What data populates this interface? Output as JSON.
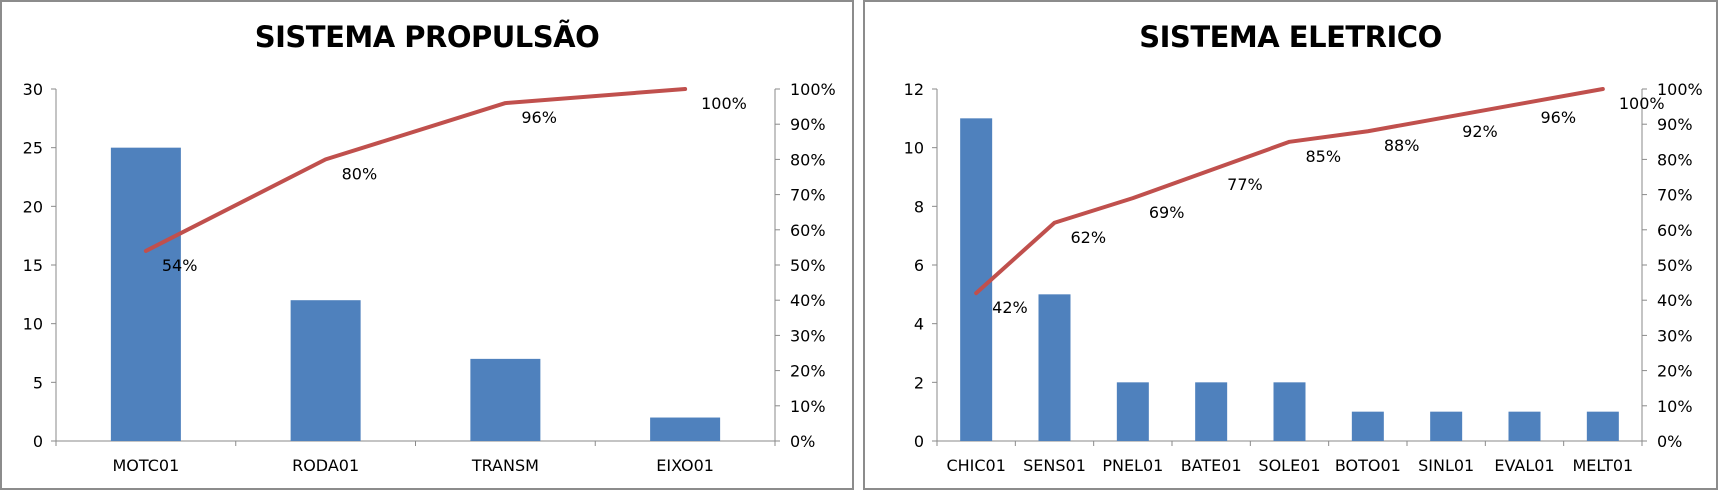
{
  "chart_data": [
    {
      "type": "bar",
      "title": "SISTEMA PROPULSÃO",
      "categories": [
        "MOTC01",
        "RODA01",
        "TRANSM",
        "EIXO01"
      ],
      "values": [
        25,
        12,
        7,
        2
      ],
      "ylim": [
        0,
        30
      ],
      "y_ticks": [
        "0",
        "5",
        "10",
        "15",
        "20",
        "25",
        "30"
      ],
      "cumulative": [
        54,
        80,
        96,
        100
      ],
      "cumulative_labels": [
        "54%",
        "80%",
        "96%",
        "100%"
      ],
      "y2_ticks": [
        "0%",
        "10%",
        "20%",
        "30%",
        "40%",
        "50%",
        "60%",
        "70%",
        "80%",
        "90%",
        "100%"
      ],
      "bar_color": "#4f81bd",
      "line_color": "#c0504d",
      "grid": false,
      "legend": "none"
    },
    {
      "type": "bar",
      "title": "SISTEMA ELETRICO",
      "categories": [
        "CHIC01",
        "SENS01",
        "PNEL01",
        "BATE01",
        "SOLE01",
        "BOTO01",
        "SINL01",
        "EVAL01",
        "MELT01"
      ],
      "values": [
        11,
        5,
        2,
        2,
        2,
        1,
        1,
        1,
        1
      ],
      "ylim": [
        0,
        12
      ],
      "y_ticks": [
        "0",
        "2",
        "4",
        "6",
        "8",
        "10",
        "12"
      ],
      "cumulative": [
        42,
        62,
        69,
        77,
        85,
        88,
        92,
        96,
        100
      ],
      "cumulative_labels": [
        "42%",
        "62%",
        "69%",
        "77%",
        "85%",
        "88%",
        "92%",
        "96%",
        "100%"
      ],
      "y2_ticks": [
        "0%",
        "10%",
        "20%",
        "30%",
        "40%",
        "50%",
        "60%",
        "70%",
        "80%",
        "90%",
        "100%"
      ],
      "bar_color": "#4f81bd",
      "line_color": "#c0504d",
      "grid": false,
      "legend": "none"
    }
  ]
}
